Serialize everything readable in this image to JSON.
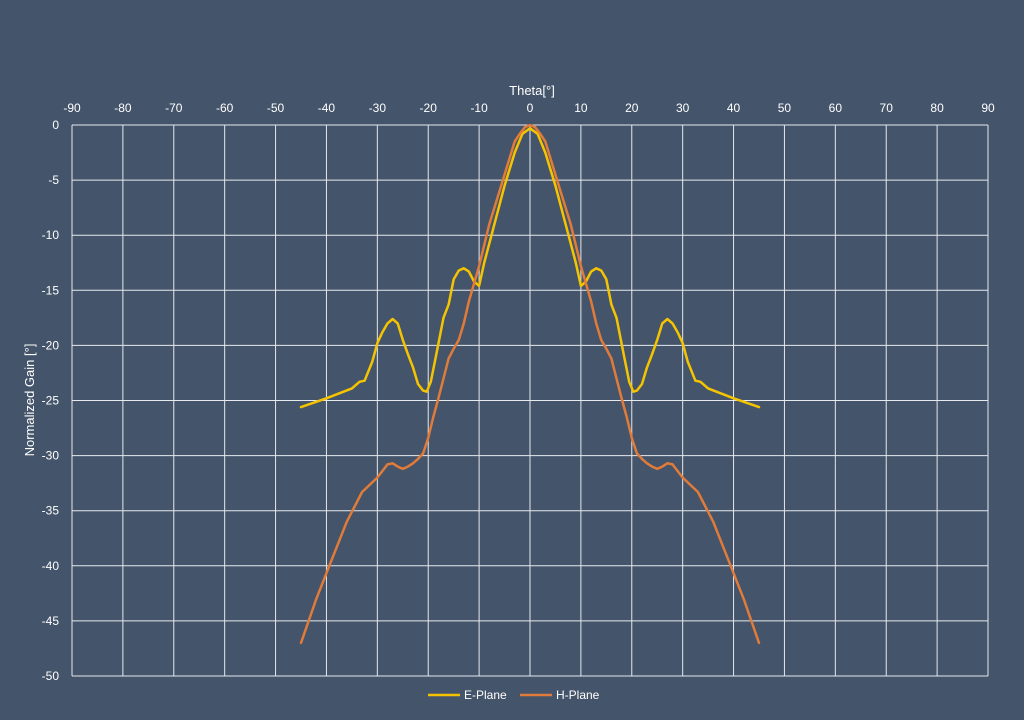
{
  "chart_data": {
    "type": "line",
    "title": "",
    "xlabel": "Theta[°]",
    "ylabel": "Normalized Gain [°]",
    "xlim": [
      -90,
      90
    ],
    "ylim": [
      -50,
      0
    ],
    "x_ticks": [
      -90,
      -80,
      -70,
      -60,
      -50,
      -40,
      -30,
      -20,
      -10,
      0,
      10,
      20,
      30,
      40,
      50,
      60,
      70,
      80,
      90
    ],
    "y_ticks": [
      0,
      -5,
      -10,
      -15,
      -20,
      -25,
      -30,
      -35,
      -40,
      -45,
      -50
    ],
    "x_axis_position": "top",
    "grid": true,
    "legend_position": "bottom",
    "series": [
      {
        "name": "E-Plane",
        "color": "#f5c400",
        "points": [
          [
            -45,
            -25.6
          ],
          [
            -40,
            -24.8
          ],
          [
            -35,
            -23.9
          ],
          [
            -33.5,
            -23.3
          ],
          [
            -32.5,
            -23.2
          ],
          [
            -31,
            -21.5
          ],
          [
            -30,
            -19.8
          ],
          [
            -29,
            -18.8
          ],
          [
            -28,
            -18.0
          ],
          [
            -27,
            -17.6
          ],
          [
            -26,
            -18.0
          ],
          [
            -25,
            -19.5
          ],
          [
            -24,
            -20.8
          ],
          [
            -23,
            -22.0
          ],
          [
            -22,
            -23.5
          ],
          [
            -21,
            -24.1
          ],
          [
            -20.3,
            -24.2
          ],
          [
            -19.5,
            -23.3
          ],
          [
            -18.5,
            -21.0
          ],
          [
            -17,
            -17.5
          ],
          [
            -16,
            -16.3
          ],
          [
            -15,
            -14.0
          ],
          [
            -14,
            -13.2
          ],
          [
            -13,
            -13.0
          ],
          [
            -12,
            -13.3
          ],
          [
            -11,
            -14.2
          ],
          [
            -10,
            -14.6
          ],
          [
            -9,
            -12.5
          ],
          [
            -7,
            -9.0
          ],
          [
            -5,
            -5.5
          ],
          [
            -3,
            -2.5
          ],
          [
            -1.5,
            -0.8
          ],
          [
            0,
            -0.3
          ],
          [
            1.5,
            -0.8
          ],
          [
            3,
            -2.5
          ],
          [
            5,
            -5.5
          ],
          [
            7,
            -9.0
          ],
          [
            9,
            -12.5
          ],
          [
            10,
            -14.6
          ],
          [
            11,
            -14.2
          ],
          [
            12,
            -13.3
          ],
          [
            13,
            -13.0
          ],
          [
            14,
            -13.2
          ],
          [
            15,
            -14.0
          ],
          [
            16,
            -16.3
          ],
          [
            17,
            -17.5
          ],
          [
            18.5,
            -21.0
          ],
          [
            19.5,
            -23.3
          ],
          [
            20.3,
            -24.2
          ],
          [
            21,
            -24.1
          ],
          [
            22,
            -23.5
          ],
          [
            23,
            -22.0
          ],
          [
            24,
            -20.8
          ],
          [
            25,
            -19.5
          ],
          [
            26,
            -18.0
          ],
          [
            27,
            -17.6
          ],
          [
            28,
            -18.0
          ],
          [
            29,
            -18.8
          ],
          [
            30,
            -19.8
          ],
          [
            31,
            -21.5
          ],
          [
            32.5,
            -23.2
          ],
          [
            33.5,
            -23.3
          ],
          [
            35,
            -23.9
          ],
          [
            40,
            -24.8
          ],
          [
            45,
            -25.6
          ]
        ]
      },
      {
        "name": "H-Plane",
        "color": "#e07b39",
        "points": [
          [
            -45,
            -47.0
          ],
          [
            -42,
            -43.0
          ],
          [
            -39,
            -39.5
          ],
          [
            -36,
            -36.0
          ],
          [
            -33,
            -33.3
          ],
          [
            -30,
            -32.0
          ],
          [
            -28,
            -30.8
          ],
          [
            -27,
            -30.7
          ],
          [
            -26,
            -31.0
          ],
          [
            -25,
            -31.2
          ],
          [
            -24,
            -31.0
          ],
          [
            -23,
            -30.7
          ],
          [
            -22,
            -30.3
          ],
          [
            -21,
            -29.8
          ],
          [
            -20,
            -28.4
          ],
          [
            -19,
            -26.5
          ],
          [
            -18,
            -24.8
          ],
          [
            -17,
            -23.0
          ],
          [
            -16,
            -21.2
          ],
          [
            -15,
            -20.3
          ],
          [
            -14,
            -19.5
          ],
          [
            -13,
            -18.0
          ],
          [
            -12,
            -16.0
          ],
          [
            -10,
            -12.8
          ],
          [
            -8,
            -9.0
          ],
          [
            -6,
            -6.0
          ],
          [
            -4,
            -3.0
          ],
          [
            -3,
            -1.5
          ],
          [
            -2,
            -0.8
          ],
          [
            -1,
            -0.2
          ],
          [
            0,
            0.0
          ],
          [
            1,
            -0.2
          ],
          [
            2,
            -0.8
          ],
          [
            3,
            -1.5
          ],
          [
            4,
            -3.0
          ],
          [
            6,
            -6.0
          ],
          [
            8,
            -9.0
          ],
          [
            10,
            -12.8
          ],
          [
            12,
            -16.0
          ],
          [
            13,
            -18.0
          ],
          [
            14,
            -19.5
          ],
          [
            15,
            -20.3
          ],
          [
            16,
            -21.2
          ],
          [
            17,
            -23.0
          ],
          [
            18,
            -24.8
          ],
          [
            19,
            -26.5
          ],
          [
            20,
            -28.4
          ],
          [
            21,
            -29.8
          ],
          [
            22,
            -30.3
          ],
          [
            23,
            -30.7
          ],
          [
            24,
            -31.0
          ],
          [
            25,
            -31.2
          ],
          [
            26,
            -31.0
          ],
          [
            27,
            -30.7
          ],
          [
            28,
            -30.8
          ],
          [
            30,
            -32.0
          ],
          [
            33,
            -33.3
          ],
          [
            36,
            -36.0
          ],
          [
            39,
            -39.5
          ],
          [
            42,
            -43.0
          ],
          [
            45,
            -47.0
          ]
        ]
      }
    ]
  },
  "colors": {
    "background": "#44546a",
    "grid": "#e6e9ee",
    "text": "#ffffff"
  }
}
